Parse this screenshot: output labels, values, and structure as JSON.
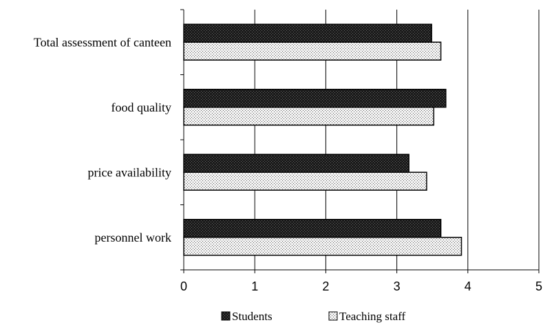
{
  "chart_data": {
    "type": "bar",
    "orientation": "horizontal",
    "categories": [
      "personnel work",
      "price availability",
      "food quality",
      "Total assessment of canteen"
    ],
    "series": [
      {
        "name": "Students",
        "values": [
          3.62,
          3.17,
          3.69,
          3.49
        ],
        "pattern": "dense-dark"
      },
      {
        "name": "Teaching staff",
        "values": [
          3.91,
          3.42,
          3.52,
          3.62
        ],
        "pattern": "light-dotted"
      }
    ],
    "xlim": [
      0,
      5
    ],
    "xticks": [
      "0",
      "1",
      "2",
      "3",
      "4",
      "5"
    ],
    "grid": "vertical",
    "legend": "bottom"
  }
}
